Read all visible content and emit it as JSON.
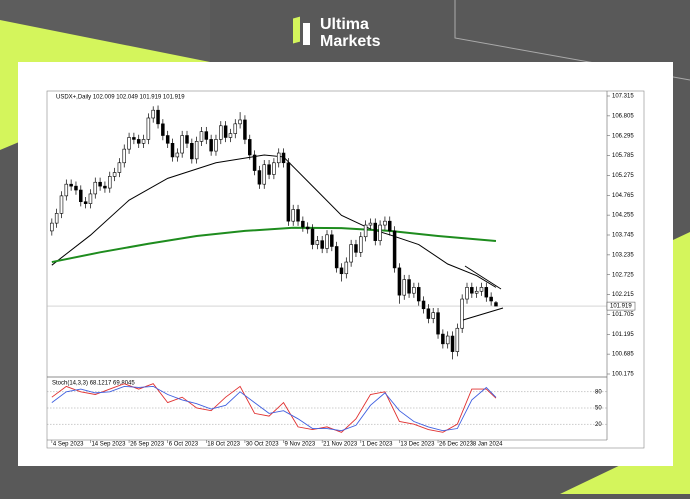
{
  "brand": {
    "line1": "Ultima",
    "line2": "Markets"
  },
  "chart_data": {
    "type": "candlestick",
    "title": "USDX+,Daily  102.009 102.049 101.919 101.919",
    "up_color": "#ffffff",
    "down_color": "#000000",
    "ylim": [
      100.175,
      107.315
    ],
    "yticks": [
      107.315,
      106.805,
      106.295,
      105.785,
      105.275,
      104.765,
      104.255,
      103.745,
      103.235,
      102.725,
      102.215,
      101.705,
      101.195,
      100.685,
      100.175
    ],
    "current_price": 101.919,
    "xlim": [
      -1,
      115
    ],
    "xticks": [
      {
        "value": 0,
        "label": "4 Sep 2023"
      },
      {
        "value": 8,
        "label": "14 Sep 2023"
      },
      {
        "value": 16,
        "label": "26 Sep 2023"
      },
      {
        "value": 24,
        "label": "6 Oct 2023"
      },
      {
        "value": 32,
        "label": "18 Oct 2023"
      },
      {
        "value": 40,
        "label": "30 Oct 2023"
      },
      {
        "value": 48,
        "label": "9 Nov 2023"
      },
      {
        "value": 56,
        "label": "21 Nov 2023"
      },
      {
        "value": 64,
        "label": "1 Dec 2023"
      },
      {
        "value": 72,
        "label": "13 Dec 2023"
      },
      {
        "value": 80,
        "label": "26 Dec 2023"
      },
      {
        "value": 87,
        "label": "8 Jan 2024"
      }
    ],
    "ohlc": [
      [
        103.85,
        104.17,
        103.73,
        104.05
      ],
      [
        104.05,
        104.42,
        103.93,
        104.3
      ],
      [
        104.3,
        104.87,
        104.18,
        104.75
      ],
      [
        104.75,
        105.17,
        104.63,
        105.05
      ],
      [
        105.05,
        105.17,
        104.88,
        105.0
      ],
      [
        105.0,
        105.12,
        104.78,
        104.9
      ],
      [
        104.9,
        105.02,
        104.48,
        104.6
      ],
      [
        104.6,
        104.72,
        104.43,
        104.55
      ],
      [
        104.55,
        104.92,
        104.43,
        104.8
      ],
      [
        104.8,
        105.22,
        104.68,
        105.1
      ],
      [
        105.1,
        105.22,
        104.88,
        105.0
      ],
      [
        105.0,
        105.12,
        104.83,
        104.95
      ],
      [
        104.95,
        105.37,
        104.83,
        105.25
      ],
      [
        105.25,
        105.47,
        105.13,
        105.35
      ],
      [
        105.35,
        105.72,
        105.23,
        105.6
      ],
      [
        105.6,
        106.07,
        105.48,
        105.95
      ],
      [
        105.95,
        106.37,
        105.83,
        106.25
      ],
      [
        106.25,
        106.37,
        106.08,
        106.2
      ],
      [
        106.2,
        106.32,
        105.98,
        106.1
      ],
      [
        106.1,
        106.32,
        105.98,
        106.2
      ],
      [
        106.2,
        106.87,
        106.08,
        106.75
      ],
      [
        106.75,
        107.05,
        106.63,
        106.95
      ],
      [
        106.95,
        107.07,
        106.48,
        106.6
      ],
      [
        106.6,
        106.72,
        106.18,
        106.3
      ],
      [
        106.3,
        106.42,
        105.98,
        106.1
      ],
      [
        106.1,
        106.22,
        105.63,
        105.75
      ],
      [
        105.75,
        105.97,
        105.63,
        105.85
      ],
      [
        105.85,
        106.42,
        105.73,
        106.3
      ],
      [
        106.3,
        106.42,
        105.98,
        106.1
      ],
      [
        106.1,
        106.22,
        105.58,
        105.7
      ],
      [
        105.7,
        106.27,
        105.58,
        106.15
      ],
      [
        106.15,
        106.52,
        106.03,
        106.4
      ],
      [
        106.4,
        106.52,
        106.08,
        106.2
      ],
      [
        106.2,
        106.32,
        105.78,
        105.9
      ],
      [
        105.9,
        106.32,
        105.78,
        106.2
      ],
      [
        106.2,
        106.67,
        106.08,
        106.55
      ],
      [
        106.55,
        106.67,
        106.13,
        106.25
      ],
      [
        106.25,
        106.47,
        106.13,
        106.35
      ],
      [
        106.35,
        106.72,
        106.23,
        106.6
      ],
      [
        106.6,
        106.9,
        106.48,
        106.7
      ],
      [
        106.7,
        106.82,
        106.08,
        106.2
      ],
      [
        106.2,
        106.32,
        105.68,
        105.8
      ],
      [
        105.8,
        105.92,
        105.28,
        105.4
      ],
      [
        105.4,
        105.52,
        104.93,
        105.05
      ],
      [
        105.05,
        105.67,
        104.93,
        105.55
      ],
      [
        105.55,
        105.67,
        105.18,
        105.3
      ],
      [
        105.3,
        105.72,
        105.18,
        105.6
      ],
      [
        105.6,
        105.97,
        105.48,
        105.85
      ],
      [
        105.85,
        105.97,
        105.48,
        105.6
      ],
      [
        105.6,
        105.72,
        103.98,
        104.1
      ],
      [
        104.1,
        104.52,
        103.98,
        104.4
      ],
      [
        104.4,
        104.52,
        103.98,
        104.1
      ],
      [
        104.1,
        104.22,
        103.83,
        103.95
      ],
      [
        103.95,
        104.07,
        103.78,
        103.9
      ],
      [
        103.9,
        104.02,
        103.38,
        103.5
      ],
      [
        103.5,
        103.72,
        103.38,
        103.6
      ],
      [
        103.6,
        103.72,
        103.28,
        103.4
      ],
      [
        103.4,
        103.87,
        103.28,
        103.75
      ],
      [
        103.75,
        103.87,
        103.33,
        103.45
      ],
      [
        103.45,
        103.57,
        102.78,
        102.9
      ],
      [
        102.9,
        103.02,
        102.55,
        102.75
      ],
      [
        102.75,
        103.17,
        102.63,
        103.05
      ],
      [
        103.05,
        103.62,
        102.93,
        103.5
      ],
      [
        103.5,
        103.62,
        103.18,
        103.3
      ],
      [
        103.3,
        103.82,
        103.18,
        103.7
      ],
      [
        103.7,
        104.12,
        103.58,
        104.0
      ],
      [
        104.0,
        104.17,
        103.88,
        104.05
      ],
      [
        104.05,
        104.17,
        103.48,
        103.6
      ],
      [
        103.6,
        104.12,
        103.48,
        104.0
      ],
      [
        104.0,
        104.22,
        103.88,
        104.1
      ],
      [
        104.1,
        104.22,
        103.73,
        103.85
      ],
      [
        103.85,
        103.97,
        102.78,
        102.9
      ],
      [
        102.9,
        103.02,
        101.98,
        102.2
      ],
      [
        102.2,
        102.72,
        102.08,
        102.6
      ],
      [
        102.6,
        102.72,
        102.13,
        102.25
      ],
      [
        102.25,
        102.52,
        102.13,
        102.4
      ],
      [
        102.4,
        102.52,
        101.93,
        102.05
      ],
      [
        102.05,
        102.17,
        101.73,
        101.85
      ],
      [
        101.85,
        101.97,
        101.48,
        101.6
      ],
      [
        101.6,
        101.87,
        101.48,
        101.75
      ],
      [
        101.75,
        101.87,
        101.08,
        101.2
      ],
      [
        101.2,
        101.32,
        100.83,
        100.95
      ],
      [
        100.95,
        101.27,
        100.83,
        101.15
      ],
      [
        101.15,
        101.27,
        100.55,
        100.75
      ],
      [
        100.75,
        101.47,
        100.63,
        101.35
      ],
      [
        101.35,
        102.22,
        101.23,
        102.1
      ],
      [
        102.1,
        102.52,
        101.98,
        102.4
      ],
      [
        102.4,
        102.52,
        102.13,
        102.25
      ],
      [
        102.25,
        102.42,
        102.13,
        102.3
      ],
      [
        102.3,
        102.52,
        102.18,
        102.4
      ],
      [
        102.4,
        102.52,
        102.03,
        102.15
      ],
      [
        102.15,
        102.27,
        101.93,
        102.05
      ],
      [
        102.009,
        102.049,
        101.919,
        101.919
      ]
    ],
    "lines": [
      {
        "color": "#000000",
        "x": [
          0,
          8,
          16,
          24,
          34,
          44,
          48,
          54,
          60,
          66,
          70,
          76,
          82,
          88,
          92
        ],
        "values": [
          102.97,
          103.74,
          104.64,
          105.2,
          105.6,
          105.8,
          105.75,
          105.0,
          104.25,
          103.9,
          103.75,
          103.5,
          103.0,
          102.7,
          102.4
        ]
      },
      {
        "color": "#1e8c1e",
        "x": [
          0,
          10,
          20,
          30,
          40,
          50,
          60,
          70,
          80,
          92
        ],
        "values": [
          103.05,
          103.3,
          103.52,
          103.72,
          103.85,
          103.93,
          103.92,
          103.85,
          103.72,
          103.59
        ]
      }
    ],
    "stoch": {
      "title": "Stoch(14,3,3) 68.1217 69.8045",
      "ylim": [
        0,
        100
      ],
      "yticks": [
        20,
        50,
        80
      ],
      "x": [
        0,
        3,
        6,
        9,
        12,
        15,
        18,
        21,
        24,
        27,
        30,
        33,
        36,
        39,
        42,
        45,
        48,
        51,
        54,
        57,
        60,
        63,
        66,
        69,
        72,
        75,
        78,
        81,
        84,
        87,
        90,
        92
      ],
      "series": [
        {
          "color": "#e03030",
          "values": [
            70,
            90,
            80,
            75,
            85,
            95,
            85,
            95,
            60,
            70,
            50,
            45,
            70,
            90,
            40,
            35,
            60,
            15,
            10,
            15,
            5,
            30,
            75,
            80,
            25,
            20,
            10,
            5,
            20,
            85,
            85,
            68.12
          ]
        },
        {
          "color": "#4060e0",
          "values": [
            60,
            80,
            85,
            78,
            80,
            90,
            88,
            90,
            75,
            65,
            58,
            48,
            55,
            80,
            60,
            40,
            45,
            30,
            12,
            12,
            8,
            18,
            55,
            78,
            45,
            25,
            15,
            8,
            12,
            65,
            88,
            69.8
          ]
        }
      ]
    }
  }
}
